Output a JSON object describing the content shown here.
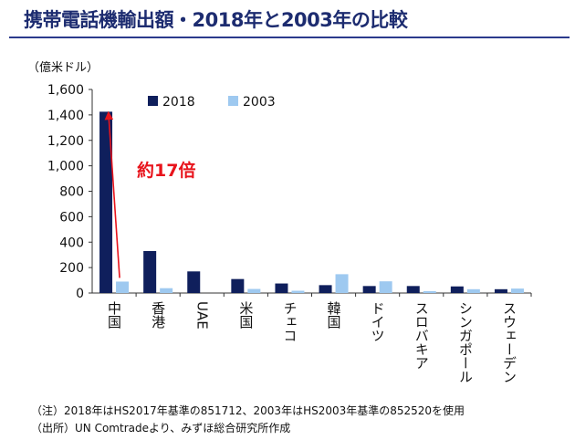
{
  "title": "携帯電話機輸出額・2018年と2003年の比較",
  "unit_label": "（億米ドル）",
  "annotation": "約17倍",
  "notes": {
    "note": "（注）2018年はHS2017年基準の851712、2003年はHS2003年基準の852520を使用",
    "source": "（出所）UN Comtradeより、みずほ総合研究所作成"
  },
  "colors": {
    "series_2018": "#0f1f5c",
    "series_2003": "#9ec9f0",
    "annotation": "#e8141c",
    "title": "#1d2c70"
  },
  "chart_data": {
    "type": "bar",
    "categories": [
      "中国",
      "香港",
      "UAE",
      "米国",
      "チェコ",
      "韓国",
      "ドイツ",
      "スロバキア",
      "シンガポール",
      "スウェーデン"
    ],
    "series": [
      {
        "name": "2018",
        "values": [
          1425,
          330,
          170,
          110,
          75,
          62,
          55,
          55,
          52,
          30
        ]
      },
      {
        "name": "2003",
        "values": [
          90,
          38,
          0,
          32,
          18,
          148,
          92,
          15,
          30,
          35
        ]
      }
    ],
    "ylim": [
      0,
      1600
    ],
    "yticks": [
      0,
      200,
      400,
      600,
      800,
      1000,
      1200,
      1400,
      1600
    ],
    "ytick_labels": [
      "0",
      "200",
      "400",
      "600",
      "800",
      "1,000",
      "1,200",
      "1,400",
      "1,600"
    ],
    "legend_position": "top",
    "grid": false
  }
}
